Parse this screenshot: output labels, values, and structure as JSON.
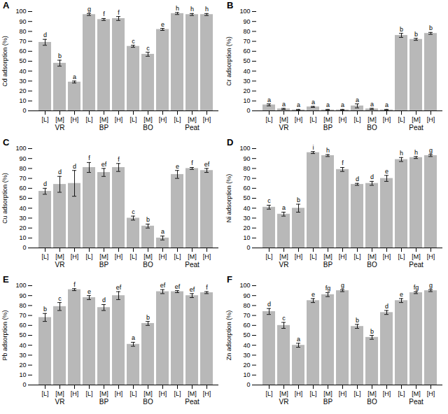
{
  "chart_data": [
    {
      "type": "bar",
      "title": "A",
      "ylabel": "Cd adsorption (%)",
      "color": "#b8b8b8",
      "grid": false,
      "ylim": [
        0,
        100
      ],
      "yticks": [
        0,
        10,
        20,
        30,
        40,
        50,
        60,
        70,
        80,
        90,
        100
      ],
      "groups": [
        "VR",
        "BP",
        "BO",
        "Peat"
      ],
      "categories": [
        "[L]",
        "[M]",
        "[H]"
      ],
      "values": [
        [
          69,
          48,
          29
        ],
        [
          97,
          92,
          93
        ],
        [
          65,
          57,
          82
        ],
        [
          98,
          97,
          97
        ]
      ],
      "errors": [
        [
          3,
          3,
          1
        ],
        [
          1,
          1,
          2
        ],
        [
          1,
          2,
          1
        ],
        [
          1,
          1,
          1
        ]
      ],
      "annotations": [
        [
          "d",
          "b",
          "a"
        ],
        [
          "g",
          "f",
          "f"
        ],
        [
          "c",
          "c",
          "e"
        ],
        [
          "h",
          "h",
          "h"
        ]
      ]
    },
    {
      "type": "bar",
      "title": "B",
      "ylabel": "Cr adsorption (%)",
      "color": "#b8b8b8",
      "grid": false,
      "ylim": [
        0,
        100
      ],
      "yticks": [
        0,
        10,
        20,
        30,
        40,
        50,
        60,
        70,
        80,
        90,
        100
      ],
      "groups": [
        "VR",
        "BP",
        "BO",
        "Peat"
      ],
      "categories": [
        "[L]",
        "[M]",
        "[H]"
      ],
      "values": [
        [
          6,
          2,
          1
        ],
        [
          4,
          1,
          1
        ],
        [
          5,
          2,
          1
        ],
        [
          76,
          72,
          78
        ]
      ],
      "errors": [
        [
          1,
          0.5,
          0.5
        ],
        [
          0.5,
          0.5,
          0.5
        ],
        [
          2,
          0.5,
          0.5
        ],
        [
          2,
          1,
          1
        ]
      ],
      "annotations": [
        [
          "a",
          "a",
          "a"
        ],
        [
          "a",
          "a",
          "a"
        ],
        [
          "a",
          "a",
          "a"
        ],
        [
          "b",
          "b",
          "b"
        ]
      ]
    },
    {
      "type": "bar",
      "title": "C",
      "ylabel": "Cu adsorption (%)",
      "color": "#b8b8b8",
      "grid": false,
      "ylim": [
        0,
        100
      ],
      "yticks": [
        0,
        10,
        20,
        30,
        40,
        50,
        60,
        70,
        80,
        90,
        100
      ],
      "groups": [
        "VR",
        "BP",
        "BO",
        "Peat"
      ],
      "categories": [
        "[L]",
        "[M]",
        "[H]"
      ],
      "values": [
        [
          57,
          64,
          65
        ],
        [
          81,
          76,
          81
        ],
        [
          30,
          22,
          10
        ],
        [
          74,
          80,
          78
        ]
      ],
      "errors": [
        [
          3,
          8,
          13
        ],
        [
          5,
          4,
          4
        ],
        [
          2,
          2,
          2
        ],
        [
          4,
          1,
          2
        ]
      ],
      "annotations": [
        [
          "d",
          "d",
          "d"
        ],
        [
          "f",
          "ef",
          "f"
        ],
        [
          "c",
          "b",
          "a"
        ],
        [
          "e",
          "f",
          "ef"
        ]
      ]
    },
    {
      "type": "bar",
      "title": "D",
      "ylabel": "Ni adsorption (%)",
      "color": "#b8b8b8",
      "grid": false,
      "ylim": [
        0,
        100
      ],
      "yticks": [
        0,
        10,
        20,
        30,
        40,
        50,
        60,
        70,
        80,
        90,
        100
      ],
      "groups": [
        "VR",
        "BP",
        "BO",
        "Peat"
      ],
      "categories": [
        "[L]",
        "[M]",
        "[H]"
      ],
      "values": [
        [
          41,
          34,
          40
        ],
        [
          96,
          93,
          79
        ],
        [
          64,
          65,
          70
        ],
        [
          89,
          91,
          93
        ]
      ],
      "errors": [
        [
          2,
          2,
          4
        ],
        [
          1,
          1,
          2
        ],
        [
          1,
          2,
          3
        ],
        [
          2,
          1,
          1
        ]
      ],
      "annotations": [
        [
          "c",
          "a",
          "b"
        ],
        [
          "i",
          "h",
          "f"
        ],
        [
          "d",
          "d",
          "e"
        ],
        [
          "h",
          "h",
          "g"
        ]
      ]
    },
    {
      "type": "bar",
      "title": "E",
      "ylabel": "Pb adsorption (%)",
      "color": "#b8b8b8",
      "grid": false,
      "ylim": [
        0,
        100
      ],
      "yticks": [
        0,
        10,
        20,
        30,
        40,
        50,
        60,
        70,
        80,
        90,
        100
      ],
      "groups": [
        "VR",
        "BP",
        "BO",
        "Peat"
      ],
      "categories": [
        "[L]",
        "[M]",
        "[H]"
      ],
      "values": [
        [
          68,
          79,
          96
        ],
        [
          88,
          78,
          90
        ],
        [
          41,
          62,
          94
        ],
        [
          94,
          90,
          93
        ]
      ],
      "errors": [
        [
          4,
          4,
          1
        ],
        [
          2,
          3,
          4
        ],
        [
          2,
          2,
          2
        ],
        [
          1,
          2,
          1
        ]
      ],
      "annotations": [
        [
          "b",
          "c",
          "f"
        ],
        [
          "e",
          "d",
          "ef"
        ],
        [
          "a",
          "b",
          "ef"
        ],
        [
          "ef",
          "ef",
          "f"
        ]
      ]
    },
    {
      "type": "bar",
      "title": "F",
      "ylabel": "Zn adsorption (%)",
      "color": "#b8b8b8",
      "grid": false,
      "ylim": [
        0,
        100
      ],
      "yticks": [
        0,
        10,
        20,
        30,
        40,
        50,
        60,
        70,
        80,
        90,
        100
      ],
      "groups": [
        "VR",
        "BP",
        "BO",
        "Peat"
      ],
      "categories": [
        "[L]",
        "[M]",
        "[H]"
      ],
      "values": [
        [
          74,
          60,
          40
        ],
        [
          85,
          91,
          95
        ],
        [
          59,
          48,
          73
        ],
        [
          85,
          93,
          95
        ]
      ],
      "errors": [
        [
          3,
          3,
          2
        ],
        [
          2,
          2,
          1
        ],
        [
          2,
          2,
          2
        ],
        [
          2,
          1,
          1
        ]
      ],
      "annotations": [
        [
          "d",
          "c",
          "a"
        ],
        [
          "e",
          "fg",
          "g"
        ],
        [
          "b",
          "b",
          "d"
        ],
        [
          "e",
          "fg",
          "g"
        ]
      ]
    }
  ]
}
